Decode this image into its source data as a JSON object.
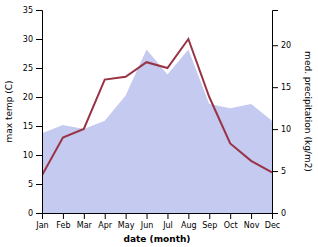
{
  "chart_data": {
    "type": "line",
    "categories": [
      "Jan",
      "Feb",
      "Mar",
      "Apr",
      "May",
      "Jun",
      "Jul",
      "Aug",
      "Sep",
      "Oct",
      "Nov",
      "Dec"
    ],
    "series": [
      {
        "type": "area",
        "axis": "y2",
        "color": "#c5caf0",
        "values": [
          9.5,
          10.5,
          10.0,
          11.0,
          14.0,
          19.5,
          16.5,
          19.5,
          13.0,
          12.5,
          13.0,
          11.0
        ]
      },
      {
        "type": "line",
        "color": "#993344",
        "values": [
          6.5,
          13.0,
          14.5,
          23.0,
          23.5,
          26.0,
          25.0,
          30.0,
          20.0,
          12.0,
          9.0,
          7.0
        ]
      }
    ],
    "xlabel": "date (month)",
    "ylabel": "max temp (C)",
    "y2label": "med. precipitation (kg/m2)",
    "ylim": [
      0,
      35
    ],
    "yticks": [
      0,
      5,
      10,
      15,
      20,
      25,
      30,
      35
    ],
    "y2lim": [
      0,
      24.2
    ],
    "y2ticks": [
      0,
      5,
      10,
      15,
      20
    ],
    "grid": false
  }
}
